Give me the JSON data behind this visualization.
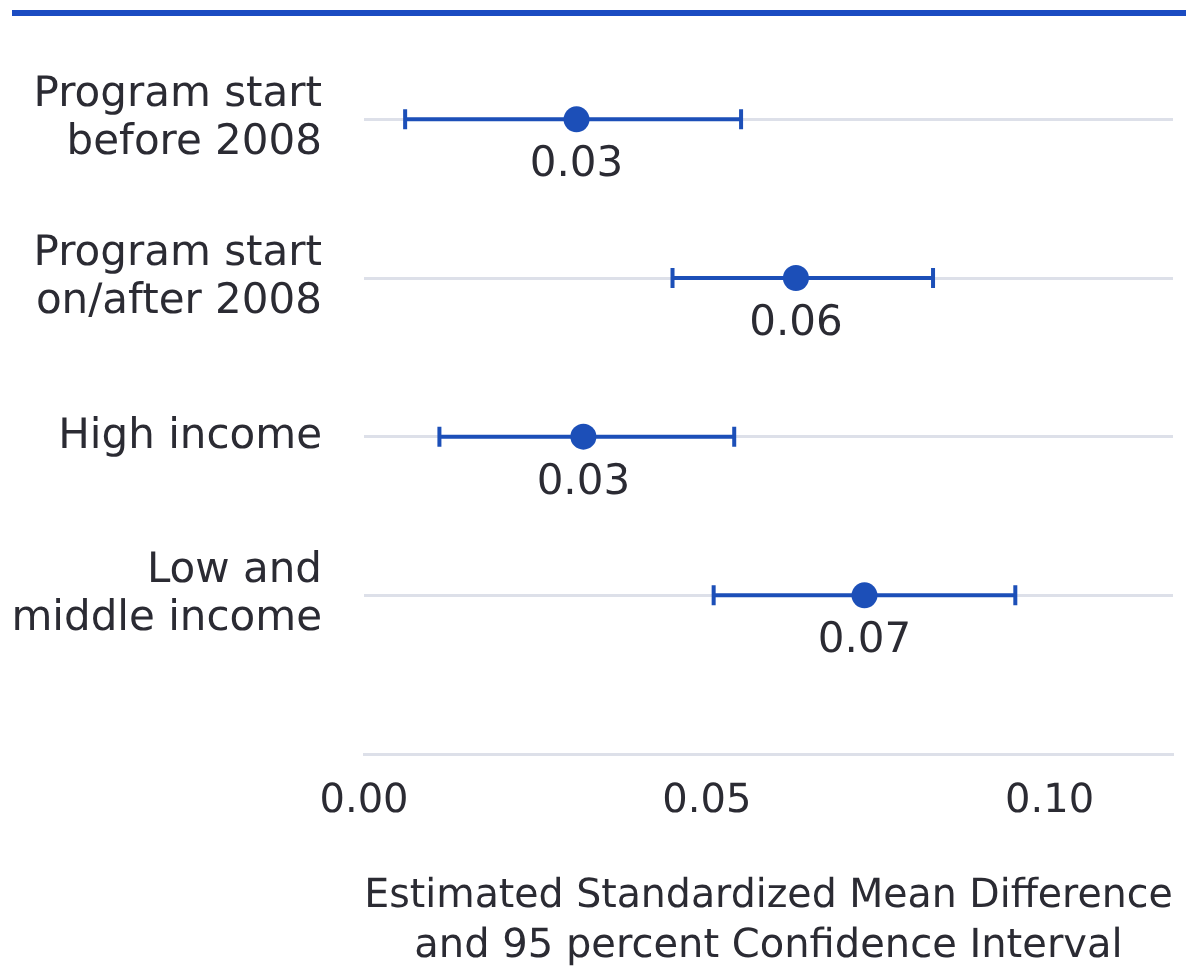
{
  "chart_data": {
    "type": "scatter",
    "orientation": "horizontal",
    "categories": [
      "Program start\nbefore 2008",
      "Program start\non/after 2008",
      "High income",
      "Low and\nmiddle income"
    ],
    "values": [
      0.031,
      0.063,
      0.032,
      0.073
    ],
    "errors": [
      [
        0.006,
        0.055
      ],
      [
        0.045,
        0.083
      ],
      [
        0.011,
        0.054
      ],
      [
        0.051,
        0.095
      ]
    ],
    "value_labels": [
      "0.03",
      "0.06",
      "0.03",
      "0.07"
    ],
    "color": "#1c4fb8",
    "xlabel": "Estimated Standardized Mean Difference\nand 95 percent Confidence Interval",
    "xlim": [
      0,
      0.118
    ],
    "xticks": [
      {
        "value": 0,
        "label": "0.00"
      },
      0.05,
      {
        "value": 0.1,
        "label": "0.10"
      }
    ],
    "grid": "y",
    "marker": "circle"
  }
}
